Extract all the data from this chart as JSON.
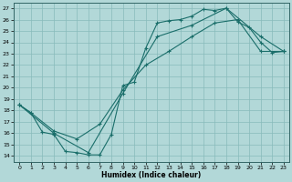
{
  "title": "",
  "xlabel": "Humidex (Indice chaleur)",
  "ylabel": "",
  "xlim": [
    -0.5,
    23.5
  ],
  "ylim": [
    13.5,
    27.5
  ],
  "xticks": [
    0,
    1,
    2,
    3,
    4,
    5,
    6,
    7,
    8,
    9,
    10,
    11,
    12,
    13,
    14,
    15,
    16,
    17,
    18,
    19,
    20,
    21,
    22,
    23
  ],
  "yticks": [
    14,
    15,
    16,
    17,
    18,
    19,
    20,
    21,
    22,
    23,
    24,
    25,
    26,
    27
  ],
  "background_color": "#b2d8d8",
  "grid_color": "#88bbbb",
  "line_color": "#1a6e6a",
  "line1_x": [
    0,
    1,
    2,
    3,
    4,
    5,
    6,
    7,
    8,
    9,
    10,
    11,
    12,
    13,
    14,
    15,
    16,
    17,
    18,
    19,
    20,
    21,
    22,
    23
  ],
  "line1_y": [
    18.5,
    17.8,
    16.1,
    15.9,
    14.4,
    14.3,
    14.1,
    14.1,
    15.9,
    20.2,
    20.5,
    23.5,
    25.7,
    25.9,
    26.0,
    26.3,
    26.9,
    26.8,
    27.0,
    25.8,
    25.3,
    24.0,
    23.1,
    23.2
  ],
  "line2_x": [
    0,
    1,
    3,
    5,
    7,
    9,
    11,
    13,
    15,
    17,
    19,
    21,
    23
  ],
  "line2_y": [
    18.5,
    17.8,
    16.2,
    15.5,
    16.8,
    19.8,
    22.0,
    23.2,
    24.5,
    25.7,
    26.0,
    23.2,
    23.2
  ],
  "line3_x": [
    0,
    3,
    6,
    9,
    12,
    15,
    18,
    21,
    23
  ],
  "line3_y": [
    18.5,
    16.0,
    14.3,
    19.5,
    24.5,
    25.5,
    27.0,
    24.5,
    23.2
  ]
}
